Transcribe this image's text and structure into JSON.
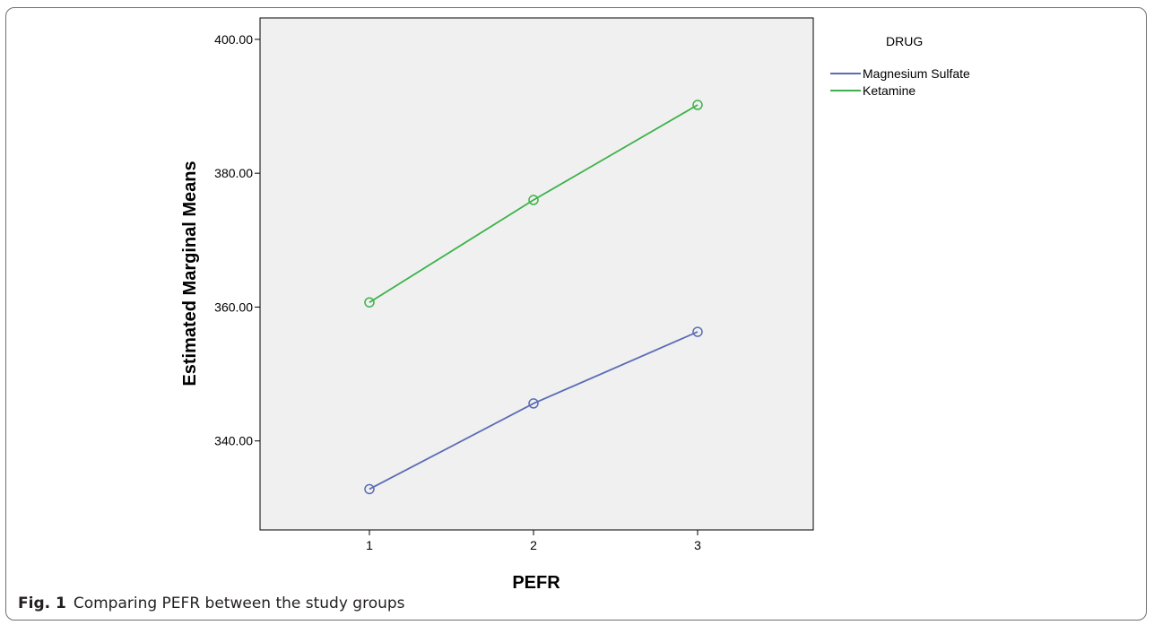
{
  "figure": {
    "label": "Fig. 1",
    "caption": "Comparing PEFR between the study groups"
  },
  "chart_data": {
    "type": "line",
    "title": "",
    "xlabel": "PEFR",
    "ylabel": "Estimated Marginal Means",
    "categories": [
      "1",
      "2",
      "3"
    ],
    "ylim": [
      326.7,
      403.2
    ],
    "yticks": [
      340,
      360,
      380,
      400
    ],
    "ytick_labels": [
      "340.00",
      "360.00",
      "380.00",
      "400.00"
    ],
    "grid": false,
    "legend": {
      "title": "DRUG",
      "position": "right"
    },
    "series": [
      {
        "name": "Magnesium Sulfate",
        "color": "#5b6cb5",
        "values": [
          332.8,
          345.6,
          356.3
        ]
      },
      {
        "name": "Ketamine",
        "color": "#3cb24a",
        "values": [
          360.7,
          376.0,
          390.2
        ]
      }
    ]
  }
}
